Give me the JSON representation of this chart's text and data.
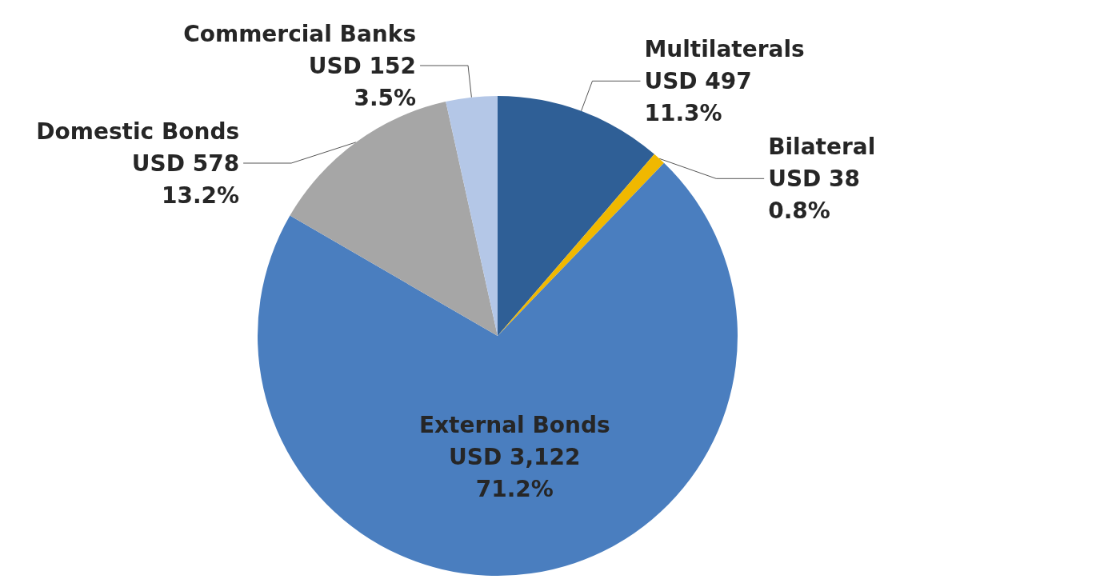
{
  "chart_data": {
    "type": "pie",
    "categories": [
      "Multilaterals",
      "Bilateral",
      "External Bonds",
      "Domestic Bonds",
      "Commercial Banks"
    ],
    "values": [
      497,
      38,
      3122,
      578,
      152
    ],
    "value_labels": [
      "USD 497\n11.3%",
      "USD 38\n0.8%",
      "USD 3,122\n71.2%",
      "USD 578\n13.2%",
      "USD 152\n3.5%"
    ],
    "colors": [
      "#2f5f96",
      "#f0b800",
      "#4a7ebf",
      "#a6a6a6",
      "#b4c7e7"
    ],
    "legend": false
  }
}
